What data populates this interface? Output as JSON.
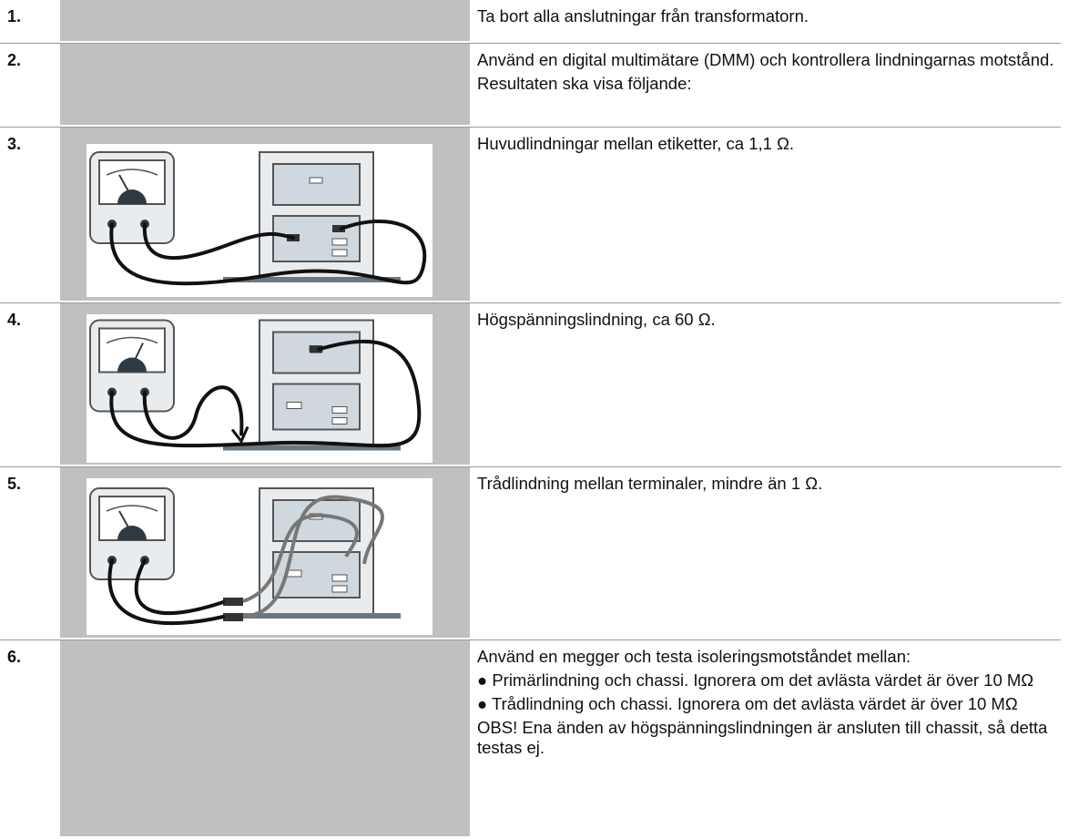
{
  "steps": [
    {
      "number": "1.",
      "text": [
        "Ta bort alla anslutningar från transformatorn."
      ]
    },
    {
      "number": "2.",
      "text": [
        "Använd en digital multimätare (DMM) och kontrollera lindningarnas motstånd.",
        "Resultaten ska visa följande:"
      ]
    },
    {
      "number": "3.",
      "text": [
        "Huvudlindningar mellan etiketter, ca 1,1 Ω."
      ]
    },
    {
      "number": "4.",
      "text": [
        "Högspänningslindning, ca 60 Ω."
      ]
    },
    {
      "number": "5.",
      "text": [
        "Trådlindning mellan terminaler, mindre än 1 Ω."
      ]
    },
    {
      "number": "6.",
      "text": [
        "Använd en megger och testa isoleringsmotståndet mellan:",
        "● Primärlindning och chassi. Ignorera om det avlästa värdet är över 10 MΩ",
        "● Trådlindning och chassi. Ignorera om det avlästa värdet är över 10 MΩ",
        "OBS! Ena änden av högspänningslindningen är ansluten till chassit, så detta testas ej."
      ]
    }
  ]
}
